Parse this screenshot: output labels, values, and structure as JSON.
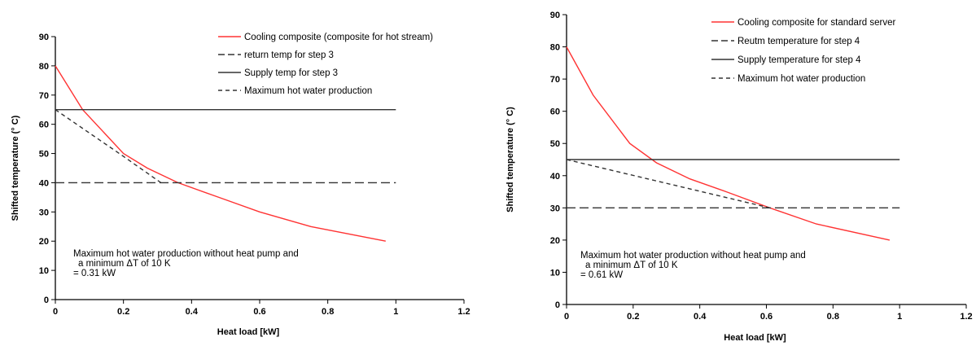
{
  "chart_data": [
    {
      "type": "line",
      "xlabel": "Heat load [kW]",
      "ylabel": "Shifted temperature (° C)",
      "xlim": [
        0,
        1.2
      ],
      "ylim": [
        0,
        90
      ],
      "xticks": [
        "0",
        "0.2",
        "0.4",
        "0.6",
        "0.8",
        "1",
        "1.2"
      ],
      "yticks": [
        "0",
        "10",
        "20",
        "30",
        "40",
        "50",
        "60",
        "70",
        "80",
        "90"
      ],
      "grid": false,
      "legend_position": "top-right",
      "series": [
        {
          "name": "Cooling composite (composite for hot stream)",
          "color": "#ff3333",
          "style": "solid",
          "x": [
            0,
            0.08,
            0.2,
            0.27,
            0.36,
            0.48,
            0.6,
            0.75,
            0.97
          ],
          "y": [
            80,
            65,
            50,
            45,
            40,
            35,
            30,
            25,
            20
          ]
        },
        {
          "name": "return temp for step 3",
          "color": "#333333",
          "style": "longdash",
          "x": [
            0,
            1
          ],
          "y": [
            40,
            40
          ]
        },
        {
          "name": "Supply temp for step 3",
          "color": "#333333",
          "style": "solid",
          "x": [
            0,
            1
          ],
          "y": [
            65,
            65
          ]
        },
        {
          "name": "Maximum hot water production",
          "color": "#333333",
          "style": "shortdash",
          "x": [
            0,
            0.2,
            0.31
          ],
          "y": [
            65,
            49,
            40
          ]
        }
      ],
      "annotation": [
        "Maximum hot water production without heat pump and",
        "a minimum ΔT of 10 K",
        "= 0.31 kW"
      ]
    },
    {
      "type": "line",
      "xlabel": "Heat load [kW]",
      "ylabel": "Shifted temperature (° C)",
      "xlim": [
        0,
        1.2
      ],
      "ylim": [
        0,
        90
      ],
      "xticks": [
        "0",
        "0.2",
        "0.4",
        "0.6",
        "0.8",
        "1",
        "1.2"
      ],
      "yticks": [
        "0",
        "10",
        "20",
        "30",
        "40",
        "50",
        "60",
        "70",
        "80",
        "90"
      ],
      "grid": false,
      "legend_position": "top-right",
      "series": [
        {
          "name": "Cooling composite for standard server",
          "color": "#ff3333",
          "style": "solid",
          "x": [
            0,
            0.08,
            0.19,
            0.27,
            0.37,
            0.48,
            0.61,
            0.75,
            0.97
          ],
          "y": [
            80,
            65,
            50,
            44,
            39,
            35,
            30,
            25,
            20
          ]
        },
        {
          "name": "Reutm temperature for step 4",
          "color": "#333333",
          "style": "longdash",
          "x": [
            0,
            1
          ],
          "y": [
            30,
            30
          ]
        },
        {
          "name": "Supply temperature for step 4",
          "color": "#333333",
          "style": "solid",
          "x": [
            0,
            1
          ],
          "y": [
            45,
            45
          ]
        },
        {
          "name": "Maximum hot water production",
          "color": "#333333",
          "style": "shortdash",
          "x": [
            0,
            0.61
          ],
          "y": [
            45,
            30
          ]
        }
      ],
      "annotation": [
        "Maximum hot water production without heat pump and",
        "a minimum ΔT of 10 K",
        "= 0.61 kW"
      ]
    }
  ]
}
